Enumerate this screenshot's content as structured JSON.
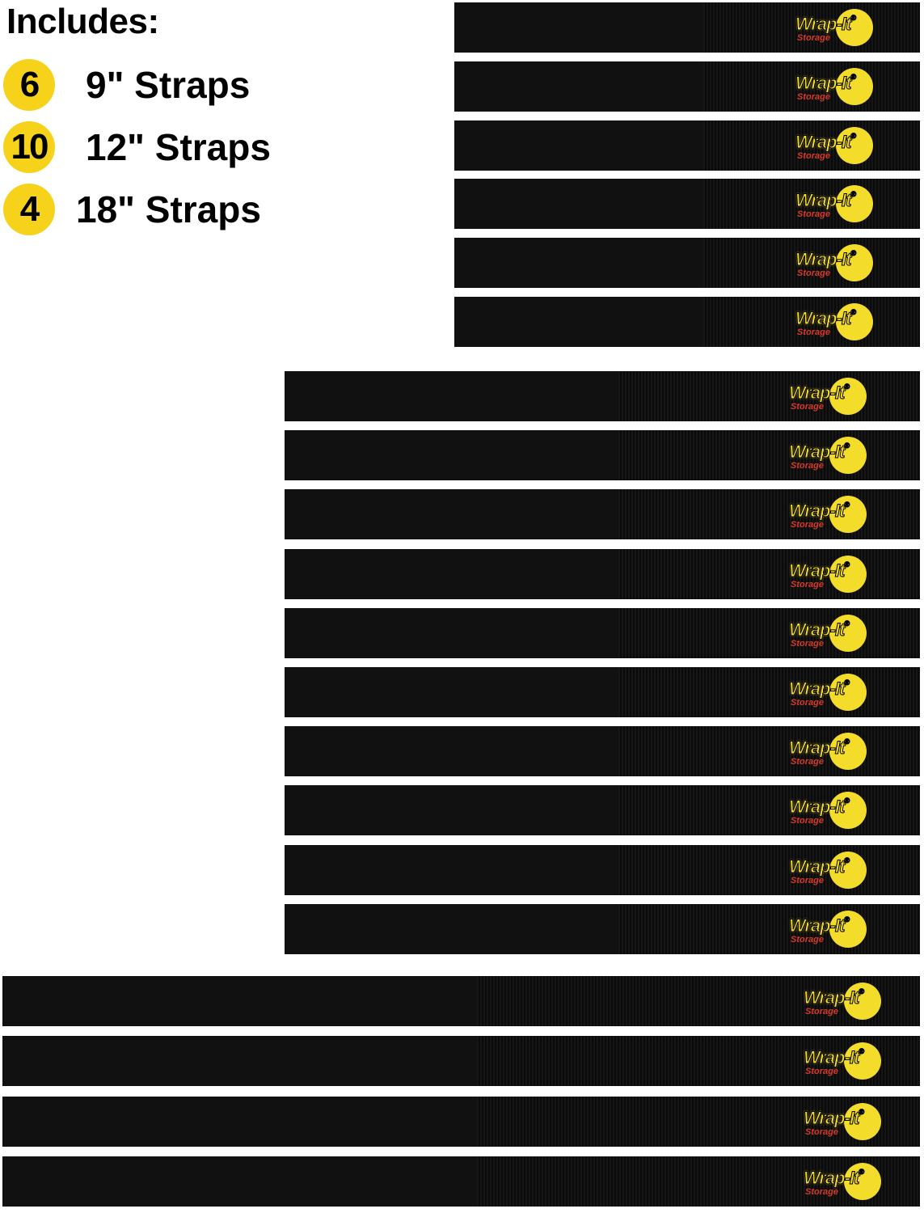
{
  "heading": "Includes:",
  "items": [
    {
      "count": "6",
      "label": "9\" Straps"
    },
    {
      "count": "10",
      "label": "12\" Straps"
    },
    {
      "count": "4",
      "label": "18\" Straps"
    }
  ],
  "brand": {
    "name": "Wrap-It",
    "registered": "®",
    "sub": "Storage"
  },
  "colors": {
    "badge": "#f6d21b",
    "strap": "#0b0b0b",
    "logo_yellow": "#f3dc2a",
    "logo_red": "#d83a2a"
  },
  "strap_groups": [
    {
      "length": "9\"",
      "quantity": 6
    },
    {
      "length": "12\"",
      "quantity": 10
    },
    {
      "length": "18\"",
      "quantity": 4
    }
  ]
}
